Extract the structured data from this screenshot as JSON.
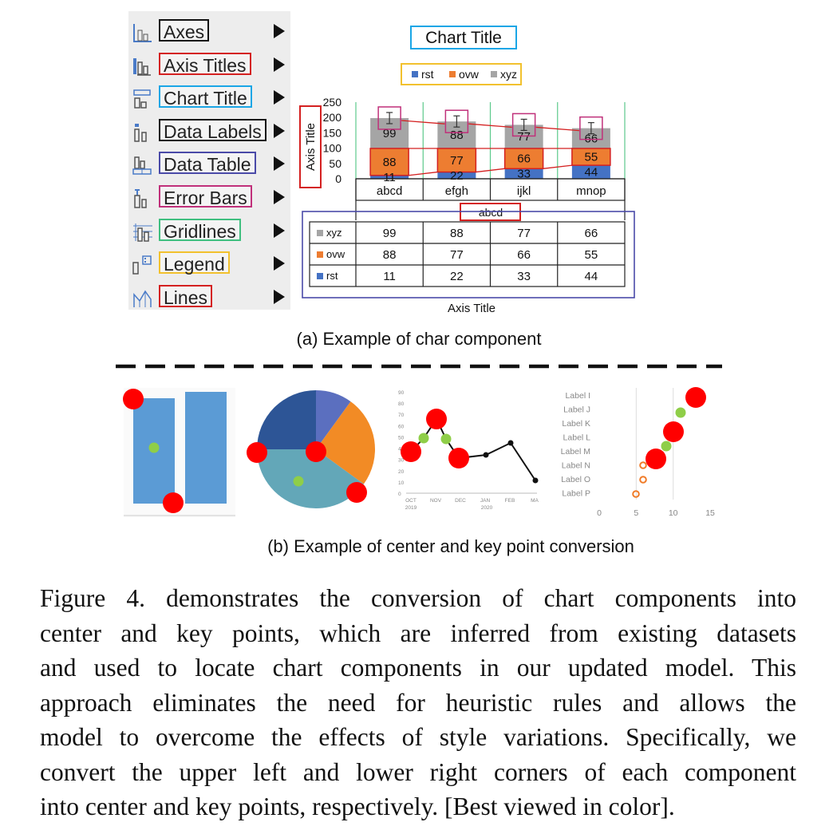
{
  "menu": {
    "items": [
      {
        "label": "Axes",
        "icon": "axes-icon",
        "border": "#111111"
      },
      {
        "label": "Axis Titles",
        "icon": "axis-titles-icon",
        "border": "#d42020"
      },
      {
        "label": "Chart Title",
        "icon": "chart-title-icon",
        "border": "#1aa6e6"
      },
      {
        "label": "Data Labels",
        "icon": "data-labels-icon",
        "border": "#111111"
      },
      {
        "label": "Data Table",
        "icon": "data-table-icon",
        "border": "#4a4aa8"
      },
      {
        "label": "Error Bars",
        "icon": "error-bars-icon",
        "border": "#c0307a"
      },
      {
        "label": "Gridlines",
        "icon": "gridlines-icon",
        "border": "#3fbf7f"
      },
      {
        "label": "Legend",
        "icon": "legend-icon",
        "border": "#f2c12e"
      },
      {
        "label": "Lines",
        "icon": "lines-icon",
        "border": "#d42020"
      }
    ]
  },
  "example_chart": {
    "title": "Chart Title",
    "legend": [
      "rst",
      "ovw",
      "xyz"
    ],
    "y_axis_title": "Axis Title",
    "x_axis_title": "Axis Title",
    "category_group_label": "abcd"
  },
  "captions": {
    "a": "(a) Example of char component",
    "b": "(b) Example of center and key point conversion"
  },
  "line_example": {
    "y_ticks": [
      "90",
      "80",
      "70",
      "60",
      "50",
      "40",
      "30",
      "20",
      "10",
      "0"
    ],
    "x_ticks": [
      "OCT",
      "NOV",
      "DEC",
      "JAN",
      "FEB",
      "MA"
    ],
    "x_years": [
      "2019",
      "2020"
    ]
  },
  "dot_example": {
    "labels": [
      "Label I",
      "Label J",
      "Label K",
      "Label L",
      "Label M",
      "Label N",
      "Label O",
      "Label P"
    ],
    "x_ticks": [
      "0",
      "5",
      "10",
      "15"
    ]
  },
  "figure_caption": [
    "Figure 4. demonstrates the conversion of chart components into",
    "center and key points, which are inferred from existing datasets",
    "and used to locate chart components in our updated model.  This",
    "approach eliminates the need for heuristic rules and allows the",
    "model to overcome the effects of style variations.  Specifically, we",
    "convert the upper left and lower right corners of each component",
    "into center and key points, respectively. [Best viewed in color]."
  ],
  "chart_data": [
    {
      "type": "bar",
      "title": "Chart Title",
      "xlabel": "Axis Title",
      "ylabel": "Axis Title",
      "stacked": true,
      "categories": [
        "abcd",
        "efgh",
        "ijkl",
        "mnop"
      ],
      "series": [
        {
          "name": "rst",
          "values": [
            11,
            22,
            33,
            44
          ],
          "color": "#4472c4"
        },
        {
          "name": "ovw",
          "values": [
            88,
            77,
            66,
            55
          ],
          "color": "#ed7d31"
        },
        {
          "name": "xyz",
          "values": [
            99,
            88,
            77,
            66
          ],
          "color": "#a5a5a5"
        }
      ],
      "y_ticks": [
        0,
        50,
        100,
        150,
        200,
        250
      ],
      "ylim": [
        0,
        250
      ],
      "error_bars": true,
      "data_table": true,
      "gridlines": "vertical",
      "legend": "top"
    },
    {
      "type": "bar",
      "categories": [
        "",
        ""
      ],
      "values": [
        84,
        88
      ],
      "color": "#5b9bd5"
    },
    {
      "type": "pie",
      "values": [
        10,
        25,
        40,
        25
      ],
      "colors": [
        "#5b6fbf",
        "#f28b25",
        "#63a7b8",
        "#2d5596"
      ]
    },
    {
      "type": "line",
      "x": [
        "OCT",
        "NOV",
        "DEC",
        "JAN",
        "FEB",
        "MA"
      ],
      "y_ticks": [
        0,
        10,
        20,
        30,
        40,
        50,
        60,
        70,
        80,
        90
      ],
      "ylim": [
        0,
        90
      ]
    },
    {
      "type": "scatter",
      "categories": [
        "Label I",
        "Label J",
        "Label K",
        "Label L",
        "Label M",
        "Label N",
        "Label O",
        "Label P"
      ],
      "x_ticks": [
        0,
        5,
        10,
        15
      ],
      "xlim": [
        0,
        15
      ]
    }
  ],
  "colors": {
    "red_point": "#ff0000",
    "green_point": "#8fce48",
    "orange_hollow": "#f07b28"
  }
}
